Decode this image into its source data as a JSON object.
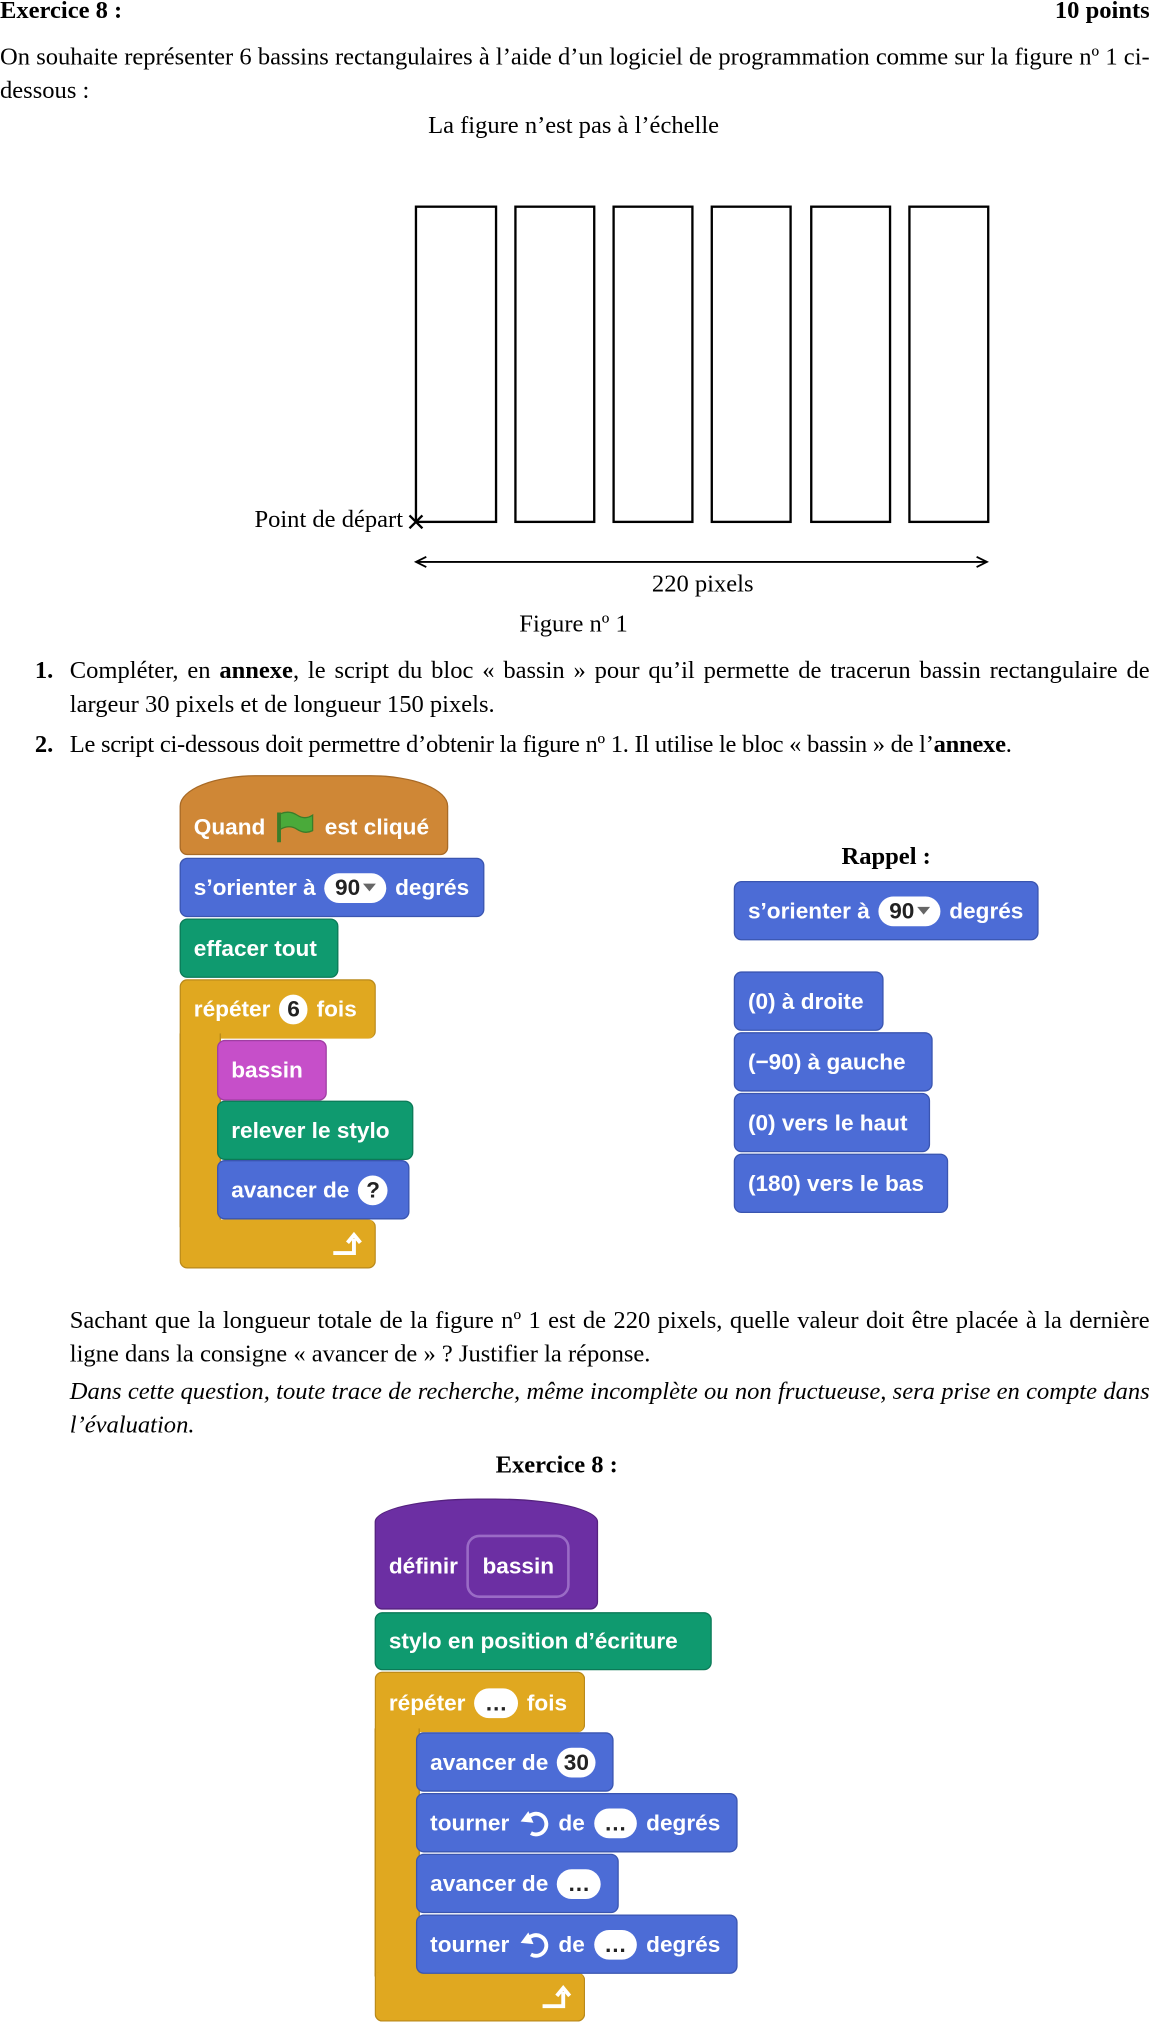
{
  "header": {
    "title": "Exercice 8 :",
    "points": "10 points"
  },
  "intro": "On souhaite représenter 6 bassins rectangulaires à l’aide d’un logiciel de programmation comme sur la figure nº 1 ci-dessous :",
  "figure": {
    "note": "La figure n’est pas à l’échelle",
    "start": "Point de départ",
    "width": "220 pixels",
    "caption": "Figure nº 1"
  },
  "questions": [
    {
      "number": "1.",
      "parts": [
        "Compléter, en ",
        "annexe",
        ", le script du bloc « bassin » pour qu’il permette de tracerun bassin rectangulaire de largeur 30 pixels et de longueur 150 pixels."
      ]
    },
    {
      "number": "2.",
      "parts": [
        "Le script ci-dessous doit permettre d’obtenir la figure nº 1. Il utilise le bloc « bassin » de l’",
        "annexe",
        "."
      ]
    }
  ],
  "script": {
    "when": "Quand",
    "clicked": "est cliqué",
    "orient": "s’orienter à",
    "orient_value": "90",
    "degrees": "degrés",
    "clear": "effacer tout",
    "repeat": "répéter",
    "repeat_count": "6",
    "times": "fois",
    "call": "bassin",
    "pen_up": "relever le stylo",
    "forward": "avancer de",
    "forward_value": "?"
  },
  "reminder": {
    "title": "Rappel :",
    "orient": "s’orienter à",
    "orient_value": "90",
    "degrees": "degrés",
    "directions": [
      "(0) à droite",
      "(−90) à gauche",
      "(0) vers le haut",
      "(180) vers le bas"
    ]
  },
  "question2_text": "Sachant que la longueur totale de la figure nº 1 est de 220 pixels, quelle valeur doit être placée à la dernière ligne dans la consigne « avancer de » ? Justifier la réponse.",
  "question2_note": "Dans cette question, toute trace de recherche, même incomplète ou non fructueuse, sera prise en compte dans l’évaluation.",
  "annex": {
    "title": "Exercice 8 :",
    "define": "définir",
    "name": "bassin",
    "pen_down": "stylo en position d’écriture",
    "repeat": "répéter",
    "repeat_count": "…",
    "times": "fois",
    "steps": [
      {
        "action": "avancer de",
        "value": "30"
      },
      {
        "action": "tourner",
        "of": "de",
        "value": "…",
        "degrees": "degrés"
      },
      {
        "action": "avancer de",
        "value": "…"
      },
      {
        "action": "tourner",
        "of": "de",
        "value": "…",
        "degrees": "degrés"
      }
    ]
  }
}
